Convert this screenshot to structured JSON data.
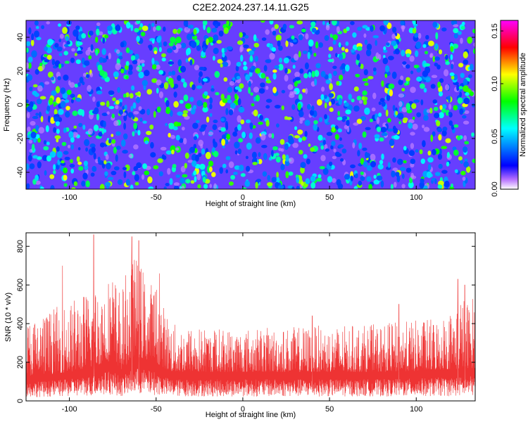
{
  "title": "C2E2.2024.237.14.11.G25",
  "chart_data": [
    {
      "type": "heatmap",
      "xlabel": "Height of straight line (km)",
      "ylabel": "Frequency (Hz)",
      "xlim": [
        -125,
        134
      ],
      "ylim": [
        -50,
        50
      ],
      "x_ticks": [
        -100,
        -50,
        0,
        50,
        100
      ],
      "y_ticks": [
        -40,
        -20,
        0,
        20,
        40
      ],
      "colorbar": {
        "label": "Normalized spectral amplitude",
        "range": [
          0,
          0.16
        ],
        "ticks": [
          0.0,
          0.05,
          0.1,
          0.15
        ],
        "tick_labels": [
          "0.00",
          "0.05",
          "0.10",
          "0.15"
        ],
        "colors": [
          "#ffffff",
          "#b36bff",
          "#0000ff",
          "#00ffff",
          "#00ff00",
          "#ffff00",
          "#ff0000",
          "#ff00ff"
        ]
      },
      "background_level": 0.015,
      "blob_levels_range": [
        0.03,
        0.11
      ],
      "grid": false
    },
    {
      "type": "line",
      "xlabel": "Height of straight line (km)",
      "ylabel": "SNR (10 * v/v)",
      "xlim": [
        -125,
        134
      ],
      "ylim": [
        0,
        870
      ],
      "x_ticks": [
        -100,
        -50,
        0,
        50,
        100
      ],
      "y_ticks": [
        0,
        200,
        400,
        600,
        800
      ],
      "color": "#ee3333",
      "grid": false,
      "envelope": {
        "x": [
          -125,
          -110,
          -100,
          -90,
          -85,
          -80,
          -75,
          -70,
          -66,
          -62,
          -58,
          -54,
          -50,
          -45,
          -40,
          -20,
          0,
          20,
          40,
          60,
          80,
          100,
          110,
          120,
          125,
          130,
          134
        ],
        "baseline": [
          130,
          140,
          150,
          170,
          180,
          200,
          210,
          160,
          200,
          230,
          220,
          210,
          200,
          165,
          150,
          150,
          150,
          150,
          150,
          150,
          150,
          155,
          160,
          165,
          165,
          170,
          170
        ],
        "upper": [
          420,
          480,
          520,
          570,
          600,
          620,
          680,
          560,
          720,
          760,
          700,
          620,
          620,
          480,
          400,
          380,
          380,
          380,
          390,
          390,
          400,
          420,
          430,
          470,
          560,
          520,
          560
        ],
        "peaks": [
          [
            -86,
            860
          ],
          [
            -64,
            850
          ],
          [
            -60,
            830
          ],
          [
            -104,
            700
          ],
          [
            -48,
            660
          ],
          [
            124,
            630
          ],
          [
            128,
            600
          ],
          [
            40,
            440
          ],
          [
            90,
            500
          ]
        ]
      }
    }
  ]
}
